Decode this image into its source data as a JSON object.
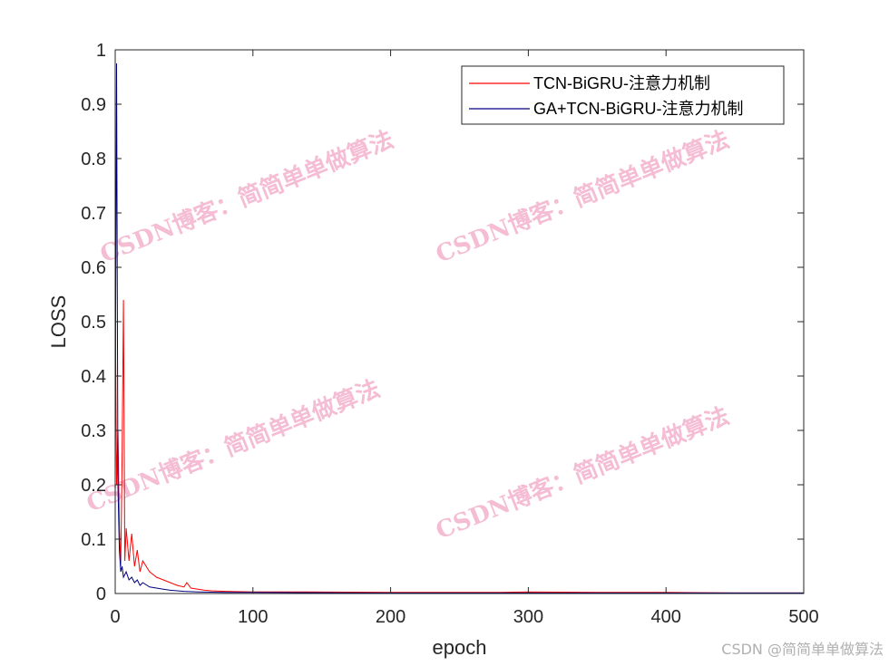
{
  "chart_data": {
    "type": "line",
    "title": "",
    "xlabel": "epoch",
    "ylabel": "LOSS",
    "xlim": [
      0,
      500
    ],
    "ylim": [
      0,
      1
    ],
    "xticks": [
      "0",
      "100",
      "200",
      "300",
      "400",
      "500"
    ],
    "yticks": [
      "0",
      "0.1",
      "0.2",
      "0.3",
      "0.4",
      "0.5",
      "0.6",
      "0.7",
      "0.8",
      "0.9",
      "1"
    ],
    "grid": false,
    "legend_position": "top-right",
    "series": [
      {
        "name": "TCN-BiGRU-注意力机制",
        "color": "#ff0000",
        "x": [
          0,
          1,
          2,
          3,
          4,
          5,
          6,
          7,
          8,
          10,
          12,
          14,
          16,
          18,
          20,
          25,
          30,
          35,
          40,
          45,
          50,
          52,
          55,
          60,
          65,
          70,
          80,
          100,
          140,
          200,
          280,
          300,
          350,
          400,
          450,
          500
        ],
        "y": [
          0.55,
          0.2,
          0.3,
          0.12,
          0.05,
          0.25,
          0.54,
          0.06,
          0.12,
          0.06,
          0.11,
          0.05,
          0.08,
          0.04,
          0.06,
          0.04,
          0.03,
          0.025,
          0.02,
          0.015,
          0.012,
          0.02,
          0.01,
          0.008,
          0.006,
          0.005,
          0.004,
          0.003,
          0.003,
          0.002,
          0.002,
          0.003,
          0.002,
          0.002,
          0.001,
          0.001
        ]
      },
      {
        "name": "GA+TCN-BiGRU-注意力机制",
        "color": "#00007f",
        "x": [
          0,
          1,
          2,
          3,
          4,
          5,
          6,
          8,
          10,
          12,
          14,
          16,
          18,
          20,
          25,
          30,
          35,
          40,
          45,
          50,
          60,
          80,
          100,
          200,
          300,
          400,
          500
        ],
        "y": [
          0.3,
          0.975,
          0.2,
          0.08,
          0.04,
          0.05,
          0.03,
          0.04,
          0.025,
          0.03,
          0.02,
          0.025,
          0.015,
          0.02,
          0.012,
          0.01,
          0.008,
          0.006,
          0.005,
          0.004,
          0.003,
          0.002,
          0.002,
          0.001,
          0.001,
          0.001,
          0.001
        ]
      }
    ]
  },
  "watermark": "CSDN博客：简简单单做算法",
  "credit": "CSDN @简简单单做算法"
}
